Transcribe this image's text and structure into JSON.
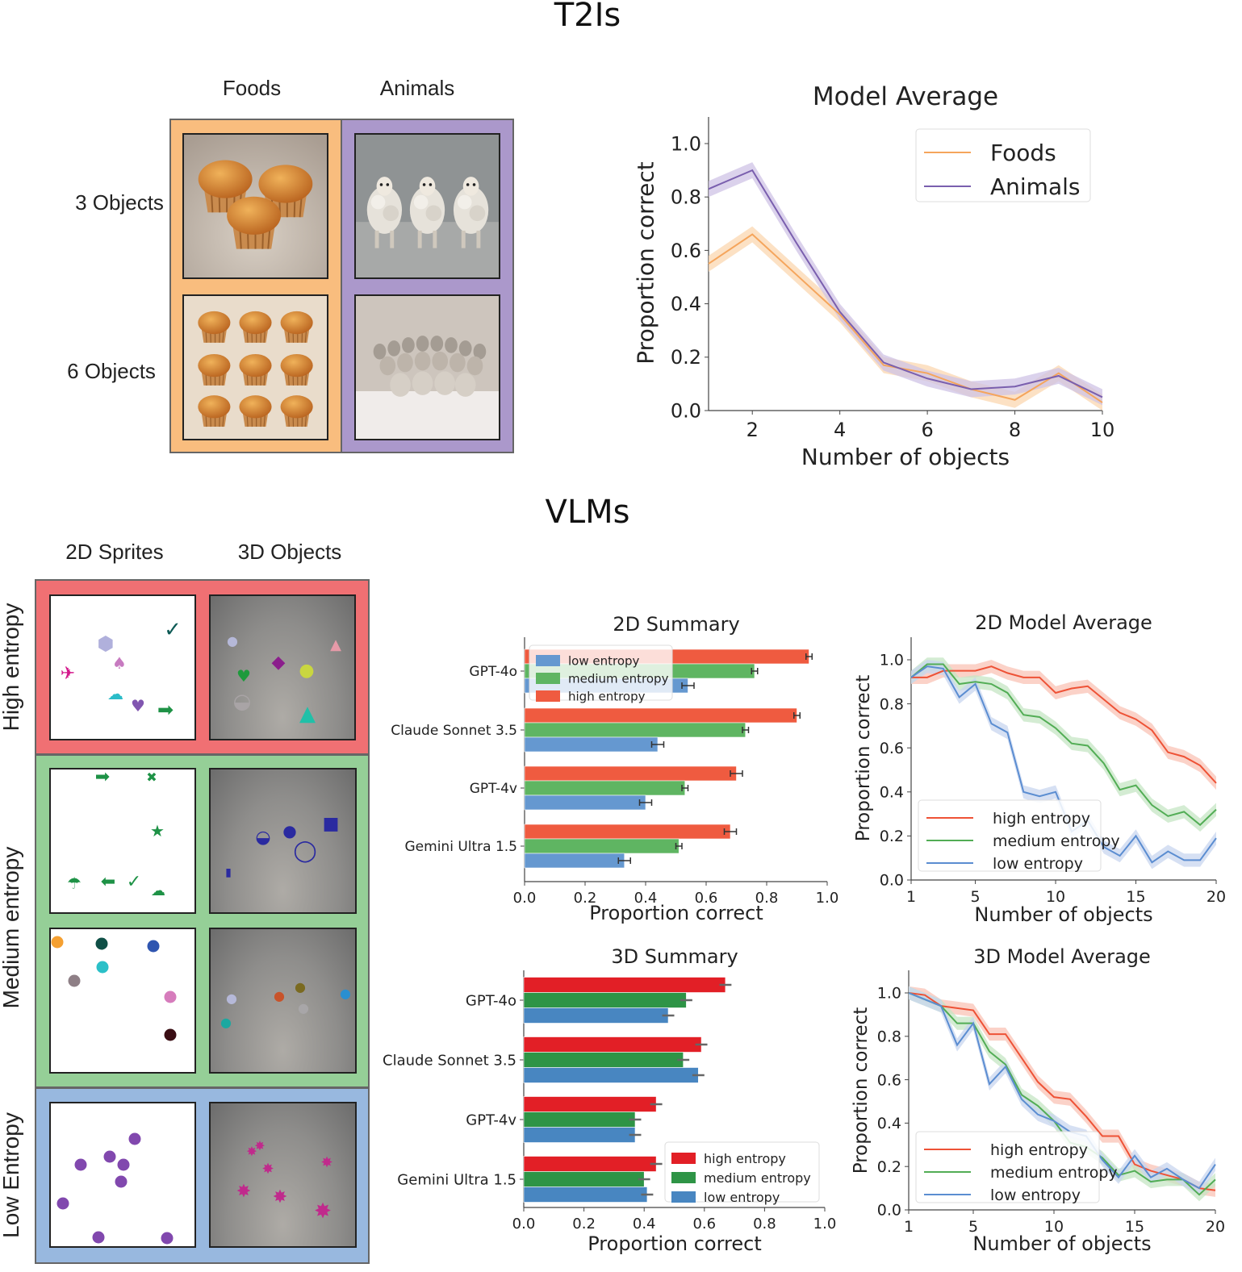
{
  "t2i": {
    "section_title": "T2Is",
    "columns": [
      "Foods",
      "Animals"
    ],
    "rows": [
      "3 Objects",
      "6 Objects"
    ],
    "colors": {
      "foods": "#f9bd7e",
      "animals": "#ab98cb"
    }
  },
  "vlm": {
    "section_title": "VLMs",
    "columns": [
      "2D Sprites",
      "3D Objects"
    ],
    "rows": [
      "High entropy",
      "Medium entropy",
      "Low Entropy"
    ],
    "colors": {
      "high": "#f07073",
      "medium": "#95cf97",
      "low": "#98b8df"
    }
  },
  "chart_data": [
    {
      "id": "t2i",
      "type": "line",
      "title": "Model Average",
      "xlabel": "Number of objects",
      "ylabel": "Proportion correct",
      "x": [
        1,
        2,
        3,
        4,
        5,
        6,
        7,
        8,
        9,
        10
      ],
      "xticks": [
        2,
        4,
        6,
        8,
        10
      ],
      "yticks": [
        0.0,
        0.2,
        0.4,
        0.6,
        0.8,
        1.0
      ],
      "xlim": [
        1,
        10
      ],
      "ylim": [
        0,
        1.1
      ],
      "legend": "top-right",
      "grid": false,
      "series": [
        {
          "name": "Foods",
          "color": "#f5a55c",
          "band": "#fbd7b0",
          "values": [
            0.55,
            0.66,
            0.51,
            0.36,
            0.17,
            0.14,
            0.08,
            0.04,
            0.14,
            0.03
          ]
        },
        {
          "name": "Animals",
          "color": "#7a5fae",
          "band": "#cfc3e6",
          "values": [
            0.83,
            0.9,
            0.63,
            0.37,
            0.18,
            0.12,
            0.08,
            0.09,
            0.13,
            0.05
          ]
        }
      ]
    },
    {
      "id": "sum2d",
      "type": "bar",
      "orientation": "horizontal",
      "title": "2D Summary",
      "xlabel": "Proportion correct",
      "categories": [
        "GPT-4o",
        "Claude Sonnet 3.5",
        "GPT-4v",
        "Gemini Ultra 1.5"
      ],
      "xticks": [
        0.0,
        0.2,
        0.4,
        0.6,
        0.8,
        1.0
      ],
      "xlim": [
        0,
        1
      ],
      "legend": "top-left",
      "legend_order": [
        2,
        1,
        0
      ],
      "series": [
        {
          "name": "high entropy",
          "color": "#ef5b40",
          "values": [
            0.94,
            0.9,
            0.7,
            0.68
          ],
          "error": [
            0.01,
            0.01,
            0.02,
            0.02
          ]
        },
        {
          "name": "medium entropy",
          "color": "#5fb562",
          "values": [
            0.76,
            0.73,
            0.53,
            0.51
          ],
          "error": [
            0.01,
            0.01,
            0.01,
            0.01
          ]
        },
        {
          "name": "low entropy",
          "color": "#6598d0",
          "values": [
            0.54,
            0.44,
            0.4,
            0.33
          ],
          "error": [
            0.02,
            0.02,
            0.02,
            0.02
          ]
        }
      ]
    },
    {
      "id": "avg2d",
      "type": "line",
      "title": "2D Model Average",
      "xlabel": "Number of objects",
      "ylabel": "Proportion correct",
      "x": [
        1,
        2,
        3,
        4,
        5,
        6,
        7,
        8,
        9,
        10,
        11,
        12,
        13,
        14,
        15,
        16,
        17,
        18,
        19,
        20
      ],
      "xticks": [
        1,
        5,
        10,
        15,
        20
      ],
      "yticks": [
        0.0,
        0.2,
        0.4,
        0.6,
        0.8,
        1.0
      ],
      "xlim": [
        1,
        20
      ],
      "ylim": [
        0,
        1.1
      ],
      "legend": "lower-left",
      "grid": false,
      "series": [
        {
          "name": "high entropy",
          "color": "#ee5236",
          "band": "#f9c3b5",
          "values": [
            0.92,
            0.92,
            0.95,
            0.95,
            0.95,
            0.97,
            0.94,
            0.92,
            0.92,
            0.85,
            0.87,
            0.88,
            0.82,
            0.76,
            0.73,
            0.68,
            0.58,
            0.56,
            0.52,
            0.44
          ]
        },
        {
          "name": "medium entropy",
          "color": "#52ad55",
          "band": "#c6e6c4",
          "values": [
            0.92,
            0.98,
            0.98,
            0.89,
            0.9,
            0.89,
            0.85,
            0.75,
            0.74,
            0.69,
            0.62,
            0.61,
            0.53,
            0.41,
            0.43,
            0.34,
            0.29,
            0.31,
            0.25,
            0.32
          ]
        },
        {
          "name": "low entropy",
          "color": "#5b8dd1",
          "band": "#c8d6ef",
          "values": [
            0.92,
            0.97,
            0.96,
            0.83,
            0.89,
            0.71,
            0.67,
            0.4,
            0.38,
            0.4,
            0.22,
            0.27,
            0.15,
            0.11,
            0.2,
            0.08,
            0.13,
            0.09,
            0.09,
            0.19
          ]
        }
      ]
    },
    {
      "id": "sum3d",
      "type": "bar",
      "orientation": "horizontal",
      "title": "3D Summary",
      "xlabel": "Proportion correct",
      "categories": [
        "GPT-4o",
        "Claude Sonnet 3.5",
        "GPT-4v",
        "Gemini Ultra 1.5"
      ],
      "xticks": [
        0.0,
        0.2,
        0.4,
        0.6,
        0.8,
        1.0
      ],
      "xlim": [
        0,
        1
      ],
      "legend": "lower-right",
      "legend_order": [
        0,
        1,
        2
      ],
      "series": [
        {
          "name": "high entropy",
          "color": "#e21f26",
          "values": [
            0.67,
            0.59,
            0.44,
            0.44
          ],
          "error": [
            0.02,
            0.02,
            0.02,
            0.02
          ]
        },
        {
          "name": "medium entropy",
          "color": "#2e9446",
          "values": [
            0.54,
            0.53,
            0.37,
            0.4
          ],
          "error": [
            0.02,
            0.02,
            0.02,
            0.02
          ]
        },
        {
          "name": "low entropy",
          "color": "#4886c1",
          "values": [
            0.48,
            0.58,
            0.37,
            0.41
          ],
          "error": [
            0.02,
            0.02,
            0.02,
            0.02
          ]
        }
      ]
    },
    {
      "id": "avg3d",
      "type": "line",
      "title": "3D Model Average",
      "xlabel": "Number of objects",
      "ylabel": "Proportion correct",
      "x": [
        1,
        2,
        3,
        4,
        5,
        6,
        7,
        8,
        9,
        10,
        11,
        12,
        13,
        14,
        15,
        16,
        17,
        18,
        19,
        20
      ],
      "xticks": [
        1,
        5,
        10,
        15,
        20
      ],
      "yticks": [
        0.0,
        0.2,
        0.4,
        0.6,
        0.8,
        1.0
      ],
      "xlim": [
        1,
        20
      ],
      "ylim": [
        0,
        1.1
      ],
      "legend": "lower-left",
      "grid": false,
      "series": [
        {
          "name": "high entropy",
          "color": "#ee5236",
          "band": "#f9c3b5",
          "values": [
            1.0,
            0.99,
            0.94,
            0.93,
            0.92,
            0.81,
            0.81,
            0.7,
            0.59,
            0.52,
            0.51,
            0.43,
            0.34,
            0.34,
            0.21,
            0.18,
            0.16,
            0.14,
            0.1,
            0.09
          ]
        },
        {
          "name": "medium entropy",
          "color": "#52ad55",
          "band": "#c6e6c4",
          "values": [
            1.0,
            0.97,
            0.94,
            0.86,
            0.86,
            0.73,
            0.67,
            0.53,
            0.48,
            0.41,
            0.31,
            0.29,
            0.24,
            0.16,
            0.18,
            0.13,
            0.14,
            0.14,
            0.07,
            0.14
          ]
        },
        {
          "name": "low entropy",
          "color": "#5b8dd1",
          "band": "#c8d6ef",
          "values": [
            1.0,
            0.97,
            0.94,
            0.76,
            0.86,
            0.58,
            0.66,
            0.51,
            0.44,
            0.41,
            0.36,
            0.34,
            0.23,
            0.15,
            0.25,
            0.15,
            0.19,
            0.14,
            0.1,
            0.21
          ]
        }
      ]
    }
  ]
}
